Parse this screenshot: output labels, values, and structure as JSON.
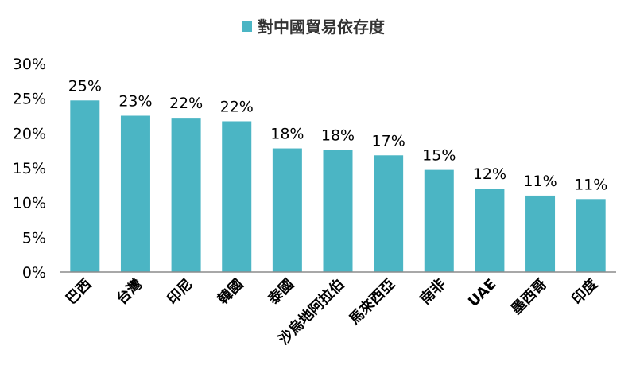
{
  "chart_data": {
    "type": "bar",
    "legend": "對中國貿易依存度",
    "legend_position": "top-center",
    "categories": [
      "巴西",
      "台灣",
      "印尼",
      "韓國",
      "泰國",
      "沙烏地阿拉伯",
      "馬來西亞",
      "南非",
      "UAE",
      "墨西哥",
      "印度"
    ],
    "values": [
      24.7,
      22.5,
      22.2,
      21.7,
      17.8,
      17.6,
      16.8,
      14.7,
      12.0,
      11.0,
      10.5
    ],
    "data_labels": [
      "25%",
      "23%",
      "22%",
      "22%",
      "18%",
      "18%",
      "17%",
      "15%",
      "12%",
      "11%",
      "11%"
    ],
    "ylim": [
      0,
      30
    ],
    "yticks": [
      0,
      5,
      10,
      15,
      20,
      25,
      30
    ],
    "ytick_labels": [
      "0%",
      "5%",
      "10%",
      "15%",
      "20%",
      "25%",
      "30%"
    ],
    "grid": false,
    "bar_color": "#4bb5c4",
    "axis_color": "#8c8c8c"
  }
}
